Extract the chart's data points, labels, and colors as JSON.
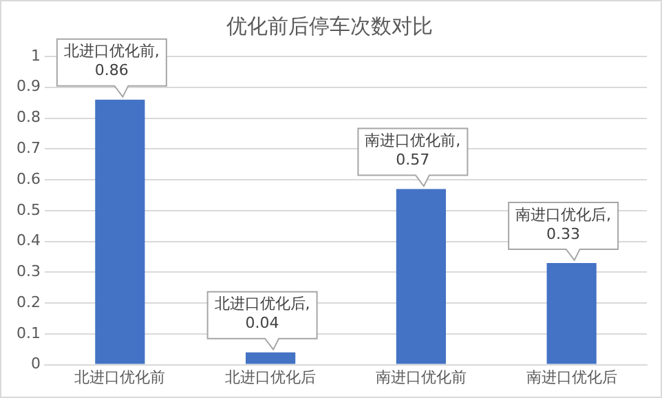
{
  "chart_data": {
    "type": "bar",
    "title": "优化前后停车次数对比",
    "categories": [
      "北进口优化前",
      "北进口优化后",
      "南进口优化前",
      "南进口优化后"
    ],
    "values": [
      0.86,
      0.04,
      0.57,
      0.33
    ],
    "color": "#4472c4",
    "value_labels": [
      "北进口优化前, 0.86",
      "北进口优化后, 0.04",
      "南进口优化前, 0.57",
      "南进口优化后, 0.33"
    ],
    "ylim": [
      0,
      1
    ],
    "yticks": [
      0,
      0.1,
      0.2,
      0.3,
      0.4,
      0.5,
      0.6,
      0.7,
      0.8,
      0.9,
      1
    ],
    "grid": "y",
    "legend": false
  }
}
